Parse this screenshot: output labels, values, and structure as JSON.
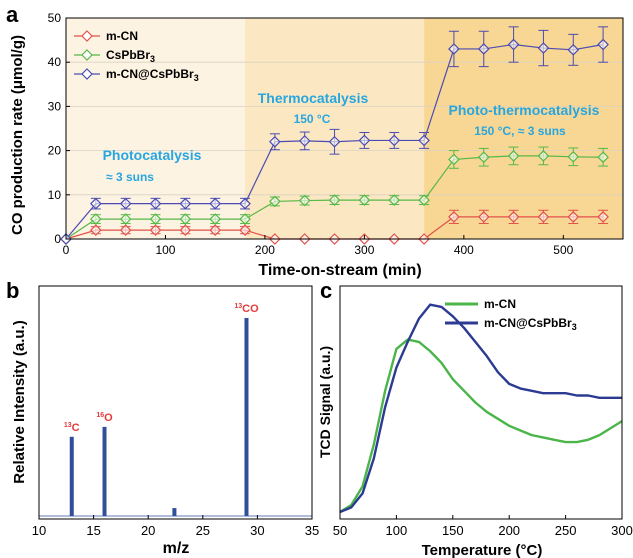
{
  "colors": {
    "mcn": "#e2524b",
    "cspb": "#56b847",
    "comp": "#4b4bb1",
    "regionPhoto": "#fdf3e2",
    "regionThermo": "#fbe8c2",
    "regionPT": "#f8d795",
    "regionText": "#27a6e0",
    "peakLabel": "#e23b3b",
    "bar": "#2f4f9b",
    "tcd_mcn": "#4bb54a",
    "tcd_comp": "#2b3b91"
  },
  "chart_data": [
    {
      "panel_label": "a",
      "type": "line",
      "xlabel": "Time-on-stream (min)",
      "ylabel": "CO production rate  (μmol/g)",
      "xlim": [
        0,
        560
      ],
      "ylim": [
        0,
        50
      ],
      "xticks": [
        0,
        100,
        200,
        300,
        400,
        500
      ],
      "yticks": [
        0,
        10,
        20,
        30,
        40,
        50
      ],
      "legend": {
        "placement": "top-left",
        "entries": [
          "m-CN",
          "CsPbBr",
          "m-CN@CsPbBr"
        ],
        "subscript": [
          "",
          "3",
          "3"
        ]
      },
      "regions": [
        {
          "x0": 0,
          "x1": 180,
          "name": "Photocatalysis",
          "sub": "≈ 3 suns"
        },
        {
          "x0": 180,
          "x1": 360,
          "name": "Thermocatalysis",
          "sub": "150 °C"
        },
        {
          "x0": 360,
          "x1": 560,
          "name": "Photo-thermocatalysis",
          "sub": "150 °C, ≈ 3 suns"
        }
      ],
      "x": [
        0,
        30,
        60,
        90,
        120,
        150,
        180,
        210,
        240,
        270,
        300,
        330,
        360,
        390,
        420,
        450,
        480,
        510,
        540
      ],
      "series": [
        {
          "name": "m-CN",
          "values": [
            0,
            2,
            2,
            2,
            2,
            2,
            2,
            0,
            0,
            0,
            0,
            0,
            0,
            5,
            5,
            5,
            5,
            5,
            5
          ],
          "error": [
            0,
            0.8,
            0.8,
            0.8,
            0.8,
            0.8,
            0.8,
            0,
            0,
            0,
            0,
            0,
            0,
            1.5,
            1.5,
            1.5,
            1.5,
            1.5,
            1.5
          ]
        },
        {
          "name": "CsPbBr3",
          "values": [
            0,
            4.5,
            4.5,
            4.5,
            4.5,
            4.5,
            4.5,
            8.5,
            8.7,
            8.8,
            8.8,
            8.8,
            8.8,
            18,
            18.5,
            18.8,
            18.8,
            18.6,
            18.5
          ],
          "error": [
            0,
            1,
            1,
            1,
            1,
            1,
            1,
            1,
            1,
            1,
            1,
            1,
            1,
            2,
            2,
            2,
            2,
            2,
            2
          ]
        },
        {
          "name": "m-CN@CsPbBr3",
          "values": [
            0,
            8,
            8,
            8,
            8,
            8,
            8,
            22,
            22.2,
            22,
            22.3,
            22.3,
            22.3,
            43,
            43,
            44,
            43.2,
            42.8,
            44
          ],
          "error": [
            0,
            1.2,
            1.2,
            1.2,
            1.2,
            1.2,
            1.2,
            1.8,
            2,
            2.8,
            1.8,
            1.8,
            1.8,
            4,
            4,
            4,
            4,
            3.5,
            4
          ]
        }
      ]
    },
    {
      "panel_label": "b",
      "type": "bar",
      "xlabel": "m/z",
      "ylabel": "Relative Intensity (a.u.)",
      "xlim": [
        10,
        35
      ],
      "ylim": [
        0,
        1
      ],
      "xticks": [
        10,
        15,
        20,
        25,
        30,
        35
      ],
      "x": [
        13,
        16,
        22.4,
        29
      ],
      "values": [
        0.4,
        0.45,
        0.04,
        1.0
      ],
      "peak_labels": [
        {
          "x": 13,
          "mass": "13",
          "atom": "C"
        },
        {
          "x": 16,
          "mass": "16",
          "atom": "O"
        },
        {
          "x": 29,
          "mass": "13",
          "atom": "CO"
        }
      ]
    },
    {
      "panel_label": "c",
      "type": "line",
      "xlabel": "Temperature (°C)",
      "ylabel": "TCD Signal (a.u.)",
      "xlim": [
        50,
        300
      ],
      "ylim": [
        0,
        1
      ],
      "xticks": [
        50,
        100,
        150,
        200,
        250,
        300
      ],
      "legend": {
        "placement": "top-right",
        "entries": [
          "m-CN",
          "m-CN@CsPbBr"
        ],
        "subscript": [
          "",
          "3"
        ]
      },
      "series": [
        {
          "name": "m-CN",
          "x": [
            50,
            60,
            70,
            80,
            90,
            100,
            110,
            120,
            130,
            140,
            150,
            160,
            170,
            180,
            190,
            200,
            210,
            220,
            230,
            240,
            250,
            260,
            270,
            280,
            290,
            300
          ],
          "values": [
            0.03,
            0.06,
            0.14,
            0.32,
            0.55,
            0.73,
            0.77,
            0.76,
            0.72,
            0.67,
            0.6,
            0.55,
            0.5,
            0.46,
            0.43,
            0.4,
            0.38,
            0.36,
            0.35,
            0.34,
            0.33,
            0.33,
            0.34,
            0.36,
            0.39,
            0.42
          ]
        },
        {
          "name": "m-CN@CsPbBr3",
          "x": [
            50,
            60,
            70,
            80,
            90,
            100,
            110,
            120,
            130,
            140,
            150,
            160,
            170,
            180,
            190,
            200,
            210,
            220,
            230,
            240,
            250,
            260,
            270,
            280,
            290,
            300
          ],
          "values": [
            0.03,
            0.05,
            0.11,
            0.26,
            0.48,
            0.65,
            0.76,
            0.86,
            0.92,
            0.91,
            0.87,
            0.82,
            0.76,
            0.7,
            0.63,
            0.58,
            0.56,
            0.55,
            0.54,
            0.54,
            0.54,
            0.53,
            0.53,
            0.52,
            0.52,
            0.52
          ]
        }
      ]
    }
  ]
}
